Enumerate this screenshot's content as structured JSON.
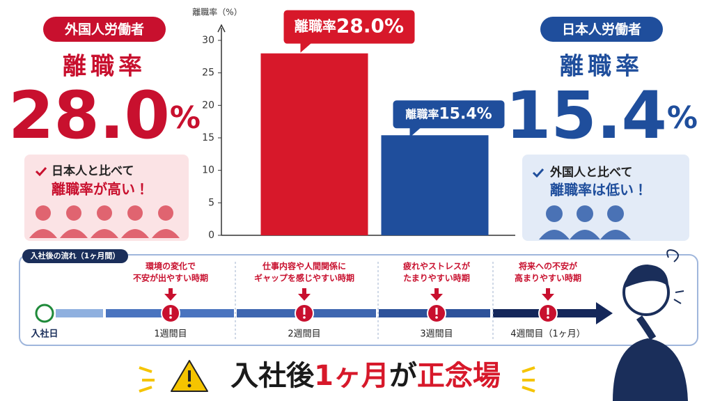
{
  "chart_data": {
    "type": "bar",
    "y_axis_label": "離職率（%）",
    "categories": [
      null,
      null
    ],
    "values": [
      28.0,
      15.4
    ],
    "value_labels": [
      "28.0%",
      "15.4%"
    ],
    "value_label_prefix": "離職率",
    "colors": [
      "#d7182a",
      "#1f4e9c"
    ],
    "ylim": [
      0,
      30
    ],
    "yticks": [
      0,
      5,
      10,
      15,
      20,
      25,
      30
    ]
  },
  "left_panel": {
    "badge": "外国人労働者",
    "heading": "離職率",
    "rate_number": "28.0",
    "rate_unit": "%",
    "note": [
      "日本人と比べて",
      "離職率が高い！"
    ]
  },
  "right_panel": {
    "badge": "日本人労働者",
    "heading": "離職率",
    "rate_number": "15.4",
    "rate_unit": "%",
    "note": [
      "外国人と比べて",
      "離職率は低い！"
    ]
  },
  "timeline": {
    "title": "入社後の流れ（1ヶ月間）",
    "start": "入社日",
    "stages": [
      {
        "alert": [
          "環境の変化で",
          "不安が出やすい時期"
        ],
        "label": "1週間目"
      },
      {
        "alert": [
          "仕事内容や人間関係に",
          "ギャップを感じやすい時期"
        ],
        "label": "2週間目"
      },
      {
        "alert": [
          "疲れやストレスが",
          "たまりやすい時期"
        ],
        "label": "3週間目"
      },
      {
        "alert": [
          "将来への不安が",
          "高まりやすい時期"
        ],
        "label": "4週間目（1ヶ月）"
      }
    ]
  },
  "footer": {
    "parts": [
      {
        "text": "入社後",
        "color": "#1a1a1a"
      },
      {
        "text": "1ヶ月",
        "color": "#d7182a"
      },
      {
        "text": "が",
        "color": "#1a1a1a"
      },
      {
        "text": "正念場",
        "color": "#d7182a"
      }
    ]
  }
}
